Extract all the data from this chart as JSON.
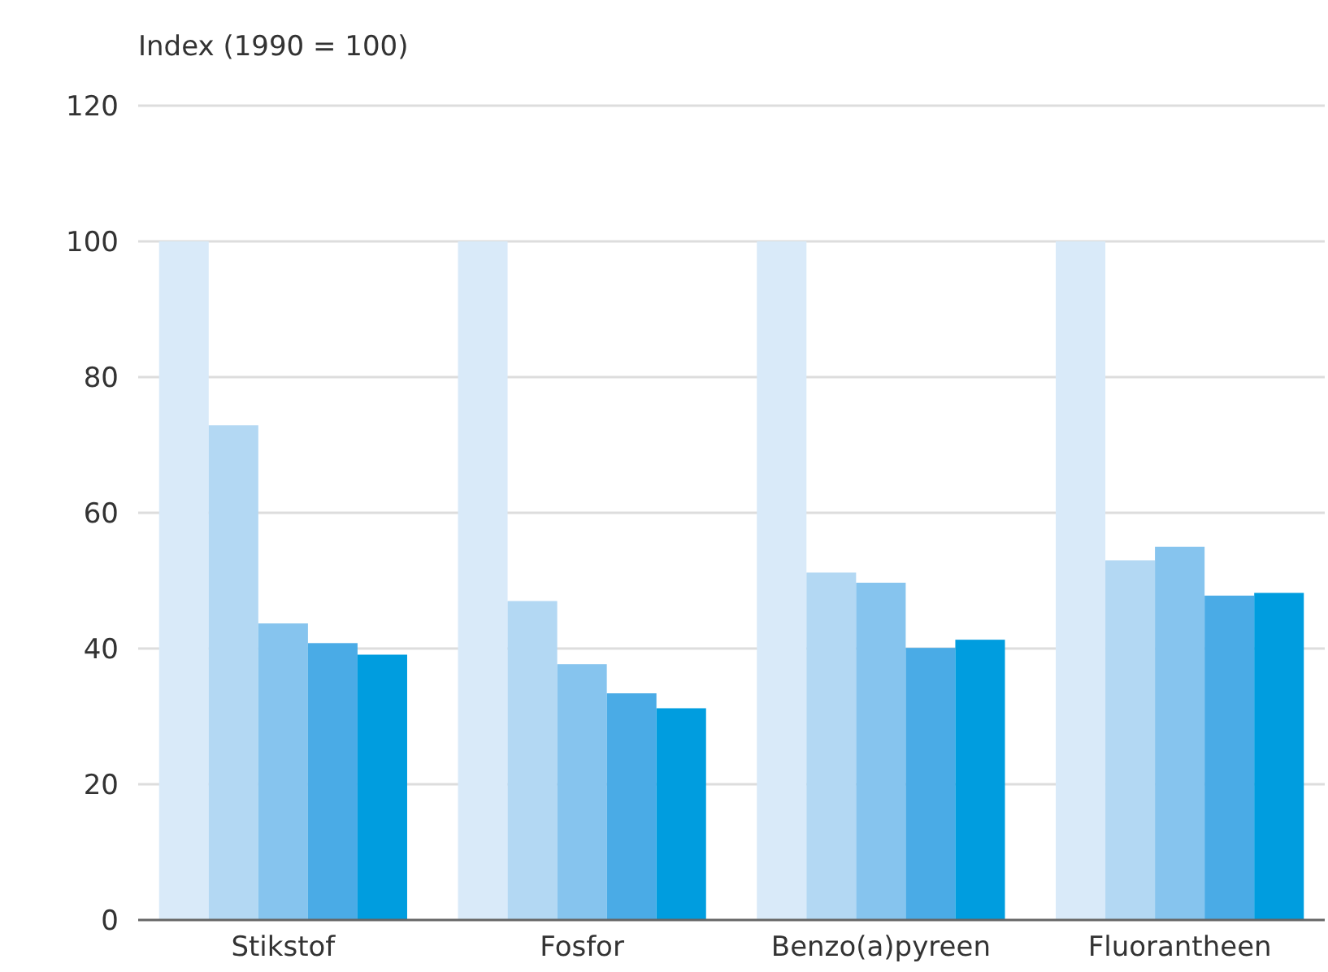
{
  "chart_data": {
    "type": "bar",
    "ylabel": "Index (1990 = 100)",
    "categories": [
      "Stikstof",
      "Fosfor",
      "Benzo(a)pyreen",
      "Fluorantheen"
    ],
    "series": [
      {
        "color": "#d9eaf9",
        "values": [
          100,
          100,
          100,
          100
        ]
      },
      {
        "color": "#b3d8f3",
        "values": [
          72.9,
          47,
          51.2,
          53
        ]
      },
      {
        "color": "#86c4ee",
        "values": [
          43.7,
          37.7,
          49.7,
          55
        ]
      },
      {
        "color": "#4aabe6",
        "values": [
          40.8,
          33.4,
          40.1,
          47.8
        ]
      },
      {
        "color": "#009ddf",
        "values": [
          39.1,
          31.2,
          41.3,
          48.2
        ]
      }
    ],
    "ylim": [
      0,
      120
    ],
    "yticks": [
      0,
      20,
      40,
      60,
      80,
      100,
      120
    ],
    "grid": "y"
  }
}
